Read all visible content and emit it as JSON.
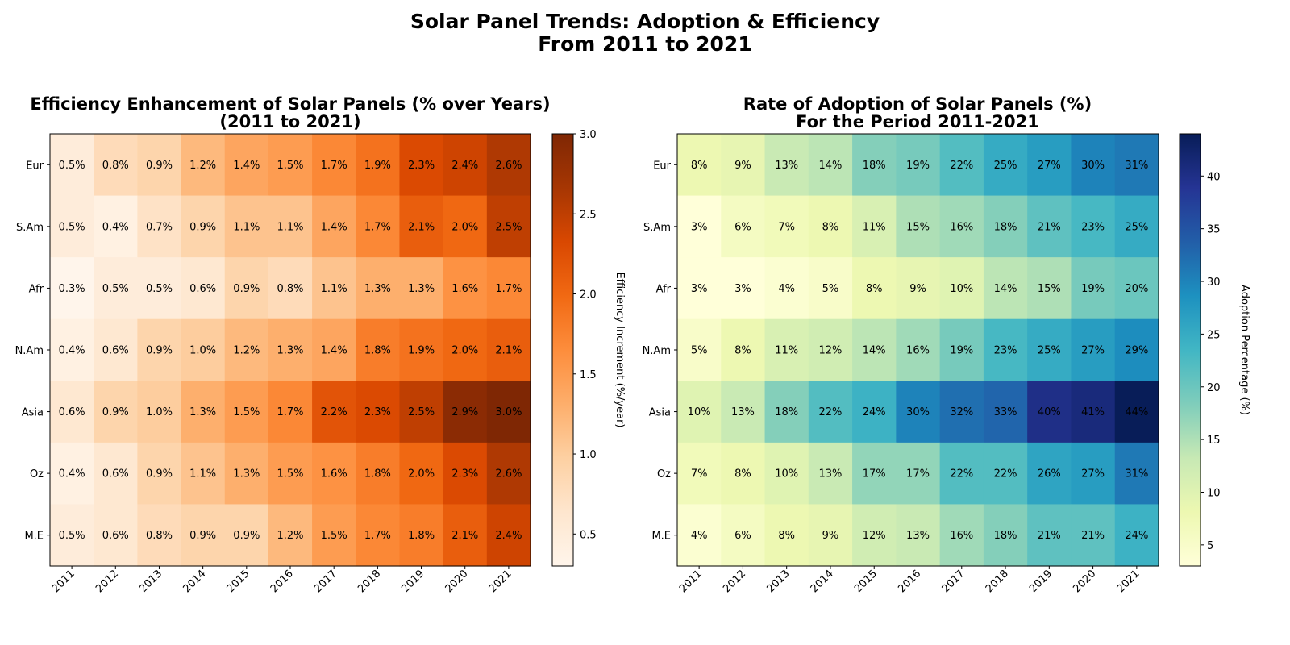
{
  "suptitle_line1": "Solar Panel Trends: Adoption & Efficiency",
  "suptitle_line2": "From 2011 to 2021",
  "chart_data": [
    {
      "type": "heatmap",
      "title_line1": "Efficiency Enhancement of Solar Panels (% over Years)",
      "title_line2": "(2011 to 2021)",
      "x_labels": [
        "2011",
        "2012",
        "2013",
        "2014",
        "2015",
        "2016",
        "2017",
        "2018",
        "2019",
        "2020",
        "2021"
      ],
      "y_labels": [
        "Eur",
        "S.Am",
        "Afr",
        "N.Am",
        "Asia",
        "Oz",
        "M.E"
      ],
      "values": [
        [
          0.5,
          0.8,
          0.9,
          1.2,
          1.4,
          1.5,
          1.7,
          1.9,
          2.3,
          2.4,
          2.6
        ],
        [
          0.5,
          0.4,
          0.7,
          0.9,
          1.1,
          1.1,
          1.4,
          1.7,
          2.1,
          2.0,
          2.5
        ],
        [
          0.3,
          0.5,
          0.5,
          0.6,
          0.9,
          0.8,
          1.1,
          1.3,
          1.3,
          1.6,
          1.7
        ],
        [
          0.4,
          0.6,
          0.9,
          1.0,
          1.2,
          1.3,
          1.4,
          1.8,
          1.9,
          2.0,
          2.1
        ],
        [
          0.6,
          0.9,
          1.0,
          1.3,
          1.5,
          1.7,
          2.2,
          2.3,
          2.5,
          2.9,
          3.0
        ],
        [
          0.4,
          0.6,
          0.9,
          1.1,
          1.3,
          1.5,
          1.6,
          1.8,
          2.0,
          2.3,
          2.6
        ],
        [
          0.5,
          0.6,
          0.8,
          0.9,
          0.9,
          1.2,
          1.5,
          1.7,
          1.8,
          2.1,
          2.4
        ]
      ],
      "value_format": "one-decimal-percent",
      "colormap": "Oranges",
      "colorbar_label": "Efficiency Increment (%/year)",
      "colorbar_range": [
        0.3,
        3.0
      ],
      "colorbar_ticks": [
        0.5,
        1.0,
        1.5,
        2.0,
        2.5,
        3.0
      ],
      "colorbar_tick_labels": [
        "0.5",
        "1.0",
        "1.5",
        "2.0",
        "2.5",
        "3.0"
      ]
    },
    {
      "type": "heatmap",
      "title_line1": "Rate of Adoption of Solar Panels (%)",
      "title_line2": "For the Period 2011-2021",
      "x_labels": [
        "2011",
        "2012",
        "2013",
        "2014",
        "2015",
        "2016",
        "2017",
        "2018",
        "2019",
        "2020",
        "2021"
      ],
      "y_labels": [
        "Eur",
        "S.Am",
        "Afr",
        "N.Am",
        "Asia",
        "Oz",
        "M.E"
      ],
      "values": [
        [
          8,
          9,
          13,
          14,
          18,
          19,
          22,
          25,
          27,
          30,
          31
        ],
        [
          3,
          6,
          7,
          8,
          11,
          15,
          16,
          18,
          21,
          23,
          25
        ],
        [
          3,
          3,
          4,
          5,
          8,
          9,
          10,
          14,
          15,
          19,
          20
        ],
        [
          5,
          8,
          11,
          12,
          14,
          16,
          19,
          23,
          25,
          27,
          29
        ],
        [
          10,
          13,
          18,
          22,
          24,
          30,
          32,
          33,
          40,
          41,
          44
        ],
        [
          7,
          8,
          10,
          13,
          17,
          17,
          22,
          22,
          26,
          27,
          31
        ],
        [
          4,
          6,
          8,
          9,
          12,
          13,
          16,
          18,
          21,
          21,
          24
        ]
      ],
      "value_format": "integer-percent",
      "colormap": "YlGnBu",
      "colorbar_label": "Adoption Percentage (%)",
      "colorbar_range": [
        3,
        44
      ],
      "colorbar_ticks": [
        5,
        10,
        15,
        20,
        25,
        30,
        35,
        40
      ],
      "colorbar_tick_labels": [
        "5",
        "10",
        "15",
        "20",
        "25",
        "30",
        "35",
        "40"
      ]
    }
  ]
}
